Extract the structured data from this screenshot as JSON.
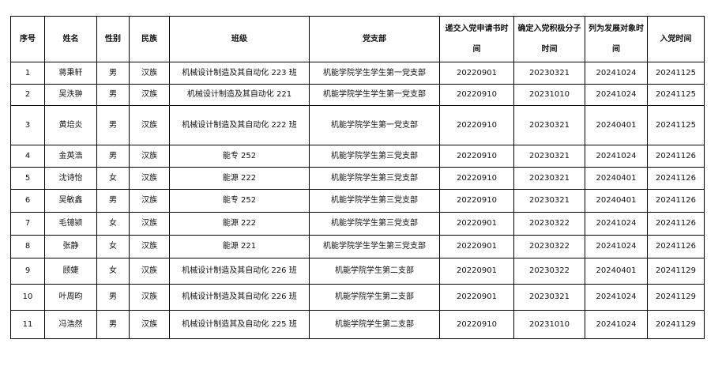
{
  "headers": [
    "序号",
    "姓名",
    "性别",
    "民族",
    "班级",
    "党支部",
    "递交入党申请书时间",
    "确定入党积极分子时间",
    "列为发展对象时间",
    "入党时间"
  ],
  "rows": [
    [
      "1",
      "蒋秉轩",
      "男",
      "汉族",
      "机械设计制造及其自动化 223 班",
      "机能学院学生学生第一党支部",
      "20220901",
      "20230321",
      "20241024",
      "20241125"
    ],
    [
      "2",
      "吴泆翀",
      "男",
      "汉族",
      "机械设计制造及其自动化 221",
      "机能学院学生学生第一党支部",
      "20220910",
      "20231010",
      "20241024",
      "20241125"
    ],
    [
      "3",
      "黄培炎",
      "男",
      "汉族",
      "机械设计制造及其自动化 222 班",
      "机能学院学生第一党支部",
      "20220910",
      "20230321",
      "20240401",
      "20241125"
    ],
    [
      "4",
      "金英浩",
      "男",
      "汉族",
      "能专 252",
      "机能学院学生第三党支部",
      "20220910",
      "20230321",
      "20241024",
      "20241126"
    ],
    [
      "5",
      "沈诗怡",
      "女",
      "汉族",
      "能源 222",
      "机能学院学生第三党支部",
      "20220910",
      "20230321",
      "20240401",
      "20241126"
    ],
    [
      "6",
      "吴敏鑫",
      "男",
      "汉族",
      "能专 252",
      "机能学院学生第三党支部",
      "20220910",
      "20230321",
      "20240401",
      "20241126"
    ],
    [
      "7",
      "毛镱颍",
      "女",
      "汉族",
      "能源 222",
      "机能学院学生第三党支部",
      "20220901",
      "20230322",
      "20241024",
      "20241126"
    ],
    [
      "8",
      "张静",
      "女",
      "汉族",
      "能源 221",
      "机能学院学生学生第三党支部",
      "20220901",
      "20230322",
      "20241024",
      "20241126"
    ],
    [
      "9",
      "顾婕",
      "女",
      "汉族",
      "机械设计制造及其自动化 226 班",
      "机能学院学生第二支部",
      "20220901",
      "20230322",
      "20240401",
      "20241129"
    ],
    [
      "10",
      "叶周昀",
      "男",
      "汉族",
      "机械设计制造及其自动化 226 班",
      "机能学院学生第二支部",
      "20220901",
      "20230321",
      "20241024",
      "20241129"
    ],
    [
      "11",
      "冯浩然",
      "男",
      "汉族",
      "机械设计制造其及自动化 225 班",
      "机能学院学生第二支部",
      "20220910",
      "20231010",
      "20241024",
      "20241129"
    ]
  ]
}
